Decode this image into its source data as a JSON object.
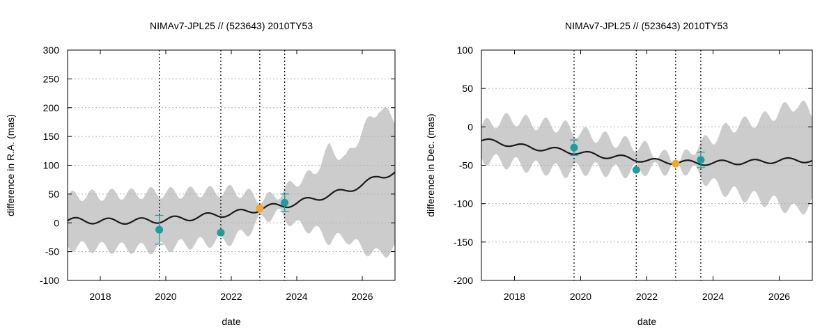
{
  "chart_data": [
    {
      "type": "line",
      "title": "NIMAv7-JPL25 // (523643) 2010TY53",
      "xlabel": "date",
      "ylabel": "difference in R.A. (mas)",
      "xlim": [
        2017.0,
        2027.0
      ],
      "ylim": [
        -100,
        300
      ],
      "xticks": [
        2018,
        2020,
        2022,
        2024,
        2026
      ],
      "yticks": [
        -100,
        -50,
        0,
        50,
        100,
        150,
        200,
        250,
        300
      ],
      "grid": true,
      "vlines": [
        2019.8,
        2021.68,
        2022.87,
        2023.63
      ],
      "colors": {
        "band": "#cccccc",
        "curve": "#1a1a1a",
        "obs": "#1a9e9e",
        "highlight": "#f5a623",
        "grid": "#b0b0b0"
      },
      "band": {
        "x": [
          2017.0,
          2017.5,
          2018.0,
          2018.5,
          2019.0,
          2019.5,
          2020.0,
          2020.5,
          2021.0,
          2021.5,
          2022.0,
          2022.5,
          2023.0,
          2023.5,
          2024.0,
          2024.5,
          2025.0,
          2025.5,
          2026.0,
          2026.5,
          2027.0
        ],
        "upper": [
          45,
          48,
          48,
          50,
          50,
          52,
          52,
          52,
          54,
          54,
          56,
          50,
          40,
          52,
          72,
          85,
          130,
          110,
          160,
          200,
          180
        ],
        "lower": [
          -40,
          -42,
          -43,
          -44,
          -44,
          -45,
          -42,
          -38,
          -35,
          -33,
          -30,
          -15,
          10,
          15,
          -5,
          -10,
          -30,
          -25,
          -45,
          -55,
          -45
        ],
        "wave_amp": 10,
        "period": 0.6
      },
      "curve": {
        "x": [
          2017.0,
          2017.5,
          2018.0,
          2018.5,
          2019.0,
          2019.5,
          2020.0,
          2020.5,
          2021.0,
          2021.5,
          2022.0,
          2022.5,
          2023.0,
          2023.5,
          2024.0,
          2024.5,
          2025.0,
          2025.5,
          2026.0,
          2026.5,
          2027.0
        ],
        "y": [
          4,
          4,
          3,
          3,
          3,
          4,
          5,
          8,
          10,
          14,
          16,
          20,
          26,
          30,
          34,
          42,
          48,
          56,
          66,
          80,
          88
        ],
        "wave_amp": 5,
        "period": 1.0
      },
      "points": [
        {
          "x": 2019.8,
          "y": -12,
          "err": 25,
          "kind": "obs"
        },
        {
          "x": 2021.68,
          "y": -17,
          "err": 0,
          "kind": "obs"
        },
        {
          "x": 2022.87,
          "y": 25,
          "err": 0,
          "kind": "highlight"
        },
        {
          "x": 2023.63,
          "y": 35,
          "err": 15,
          "kind": "obs"
        }
      ]
    },
    {
      "type": "line",
      "title": "NIMAv7-JPL25 // (523643) 2010TY53",
      "xlabel": "date",
      "ylabel": "difference in Dec. (mas)",
      "xlim": [
        2017.0,
        2027.0
      ],
      "ylim": [
        -200,
        100
      ],
      "xticks": [
        2018,
        2020,
        2022,
        2024,
        2026
      ],
      "yticks": [
        -200,
        -150,
        -100,
        -50,
        0,
        50,
        100
      ],
      "grid": true,
      "vlines": [
        2019.8,
        2021.68,
        2022.87,
        2023.63
      ],
      "colors": {
        "band": "#cccccc",
        "curve": "#1a1a1a",
        "obs": "#1a9e9e",
        "highlight": "#f5a623",
        "grid": "#b0b0b0"
      },
      "band": {
        "x": [
          2017.0,
          2017.5,
          2018.0,
          2018.5,
          2019.0,
          2019.5,
          2020.0,
          2020.5,
          2021.0,
          2021.5,
          2022.0,
          2022.5,
          2023.0,
          2023.5,
          2024.0,
          2024.5,
          2025.0,
          2025.5,
          2026.0,
          2026.5,
          2027.0
        ],
        "upper": [
          0,
          8,
          10,
          5,
          3,
          0,
          -8,
          -12,
          -18,
          -22,
          -28,
          -38,
          -45,
          -25,
          -15,
          0,
          5,
          10,
          20,
          30,
          20
        ],
        "lower": [
          -40,
          -45,
          -48,
          -52,
          -55,
          -58,
          -55,
          -55,
          -58,
          -58,
          -55,
          -55,
          -52,
          -60,
          -75,
          -85,
          -90,
          -95,
          -100,
          -110,
          -100
        ],
        "wave_amp": 9,
        "period": 0.6
      },
      "curve": {
        "x": [
          2017.0,
          2017.5,
          2018.0,
          2018.5,
          2019.0,
          2019.5,
          2020.0,
          2020.5,
          2021.0,
          2021.5,
          2022.0,
          2022.5,
          2023.0,
          2023.5,
          2024.0,
          2024.5,
          2025.0,
          2025.5,
          2026.0,
          2026.5,
          2027.0
        ],
        "y": [
          -18,
          -20,
          -24,
          -27,
          -29,
          -31,
          -34,
          -37,
          -39,
          -41,
          -44,
          -45,
          -46,
          -47,
          -47,
          -46,
          -46,
          -45,
          -44,
          -43,
          -44
        ],
        "wave_amp": 3,
        "period": 1.0
      },
      "points": [
        {
          "x": 2019.8,
          "y": -27,
          "err": 10,
          "kind": "obs"
        },
        {
          "x": 2021.68,
          "y": -56,
          "err": 0,
          "kind": "obs"
        },
        {
          "x": 2022.87,
          "y": -48,
          "err": 0,
          "kind": "highlight"
        },
        {
          "x": 2023.63,
          "y": -43,
          "err": 10,
          "kind": "obs"
        }
      ]
    }
  ]
}
